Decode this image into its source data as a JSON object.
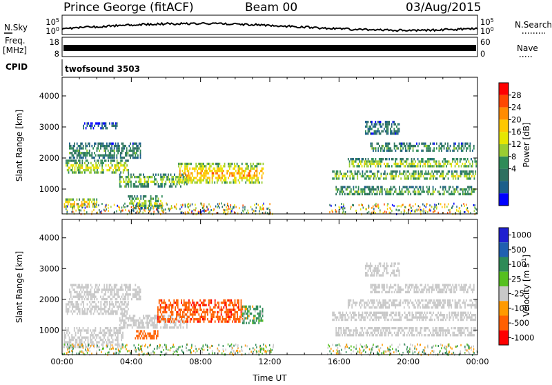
{
  "header": {
    "station": "Prince George (fitACF)",
    "beam": "Beam 00",
    "date": "03/Aug/2015"
  },
  "top_panels": {
    "nsky_label": "N.Sky",
    "nsky_ticks": [
      "10^5",
      "10^0"
    ],
    "nsearch_label": "N.Search",
    "nsearch_ticks": [
      "10^5",
      "10^0"
    ],
    "freq_label": "Freq.",
    "freq_unit": "[MHz]",
    "freq_ticks": [
      "18",
      "8"
    ],
    "nave_label": "Nave",
    "nave_ticks": [
      "60",
      "0"
    ],
    "cpid_label": "CPID",
    "cpid_value": "twofsound 3503"
  },
  "chart_data": [
    {
      "type": "heatmap",
      "name": "power",
      "ylabel": "Slant Range [km]",
      "ylim": [
        200,
        4600
      ],
      "yticks": [
        "4000",
        "3000",
        "2000",
        "1000"
      ],
      "xlim": [
        0,
        24
      ],
      "colorbar": {
        "label": "Power [dB]",
        "ticks": [
          "28",
          "24",
          "20",
          "16",
          "12",
          "8",
          "4"
        ],
        "colors": [
          "#ff0000",
          "#ff4800",
          "#ff8c00",
          "#ffc800",
          "#e6e600",
          "#9acd32",
          "#2e8b57",
          "#2e7060",
          "#1b5e8a",
          "#0000ff"
        ]
      },
      "echo_bands": [
        {
          "t0": 0.2,
          "t1": 3.8,
          "r0": 1500,
          "r1": 1950,
          "p": 16
        },
        {
          "t0": 3.3,
          "t1": 7.2,
          "r0": 1100,
          "r1": 1500,
          "p": 14
        },
        {
          "t0": 0.1,
          "t1": 2.0,
          "r0": 450,
          "r1": 700,
          "p": 22
        },
        {
          "t0": 3.8,
          "t1": 5.8,
          "r0": 400,
          "r1": 800,
          "p": 14
        },
        {
          "t0": 6.7,
          "t1": 11.6,
          "r0": 1200,
          "r1": 1850,
          "p": 22
        },
        {
          "t0": 0.4,
          "t1": 4.5,
          "r0": 2000,
          "r1": 2500,
          "p": 9
        },
        {
          "t0": 1.2,
          "t1": 3.2,
          "r0": 2950,
          "r1": 3150,
          "p": 5
        },
        {
          "t0": 15.8,
          "t1": 23.9,
          "r0": 800,
          "r1": 1100,
          "p": 11
        },
        {
          "t0": 15.6,
          "t1": 23.9,
          "r0": 1300,
          "r1": 1600,
          "p": 14
        },
        {
          "t0": 16.5,
          "t1": 23.9,
          "r0": 1700,
          "r1": 2000,
          "p": 15
        },
        {
          "t0": 17.8,
          "t1": 23.8,
          "r0": 2250,
          "r1": 2500,
          "p": 10
        },
        {
          "t0": 17.5,
          "t1": 19.5,
          "r0": 2800,
          "r1": 3200,
          "p": 7
        }
      ]
    },
    {
      "type": "heatmap",
      "name": "velocity",
      "ylabel": "Slant Range [km]",
      "ylim": [
        200,
        4600
      ],
      "yticks": [
        "4000",
        "3000",
        "2000",
        "1000"
      ],
      "xlim": [
        0,
        24
      ],
      "xticks": [
        "00:00",
        "04:00",
        "08:00",
        "12:00",
        "16:00",
        "20:00",
        "00:00"
      ],
      "xlabel": "Time UT",
      "colorbar": {
        "label": "Velocity [m s^-1]",
        "ticks": [
          "1000",
          "500",
          "100",
          "25",
          "-25",
          "-100",
          "-500",
          "-1000"
        ],
        "colors": [
          "#2020d0",
          "#2060b0",
          "#2e8b57",
          "#55c020",
          "#c8c8c8",
          "#ff9a00",
          "#ff6000",
          "#ff0000"
        ]
      },
      "echo_bands": [
        {
          "t0": 0.2,
          "t1": 3.8,
          "r0": 1500,
          "r1": 1950,
          "v": 0
        },
        {
          "t0": 3.3,
          "t1": 7.2,
          "r0": 1100,
          "r1": 1500,
          "v": 0
        },
        {
          "t0": 0.1,
          "t1": 3.5,
          "r0": 450,
          "r1": 1100,
          "v": 0
        },
        {
          "t0": 4.2,
          "t1": 5.5,
          "r0": 700,
          "r1": 1000,
          "v": -250
        },
        {
          "t0": 5.5,
          "t1": 10.4,
          "r0": 1300,
          "r1": 2000,
          "v": -400
        },
        {
          "t0": 10.4,
          "t1": 11.6,
          "r0": 1200,
          "r1": 1800,
          "v": 100
        },
        {
          "t0": 0.4,
          "t1": 4.5,
          "r0": 2000,
          "r1": 2500,
          "v": 0
        },
        {
          "t0": 15.8,
          "t1": 23.9,
          "r0": 800,
          "r1": 1100,
          "v": 0
        },
        {
          "t0": 15.6,
          "t1": 23.9,
          "r0": 1300,
          "r1": 1600,
          "v": 0
        },
        {
          "t0": 16.5,
          "t1": 23.9,
          "r0": 1700,
          "r1": 2000,
          "v": 0
        },
        {
          "t0": 17.8,
          "t1": 23.8,
          "r0": 2250,
          "r1": 2500,
          "v": 0
        },
        {
          "t0": 17.5,
          "t1": 19.5,
          "r0": 2800,
          "r1": 3200,
          "v": 0
        }
      ]
    }
  ]
}
